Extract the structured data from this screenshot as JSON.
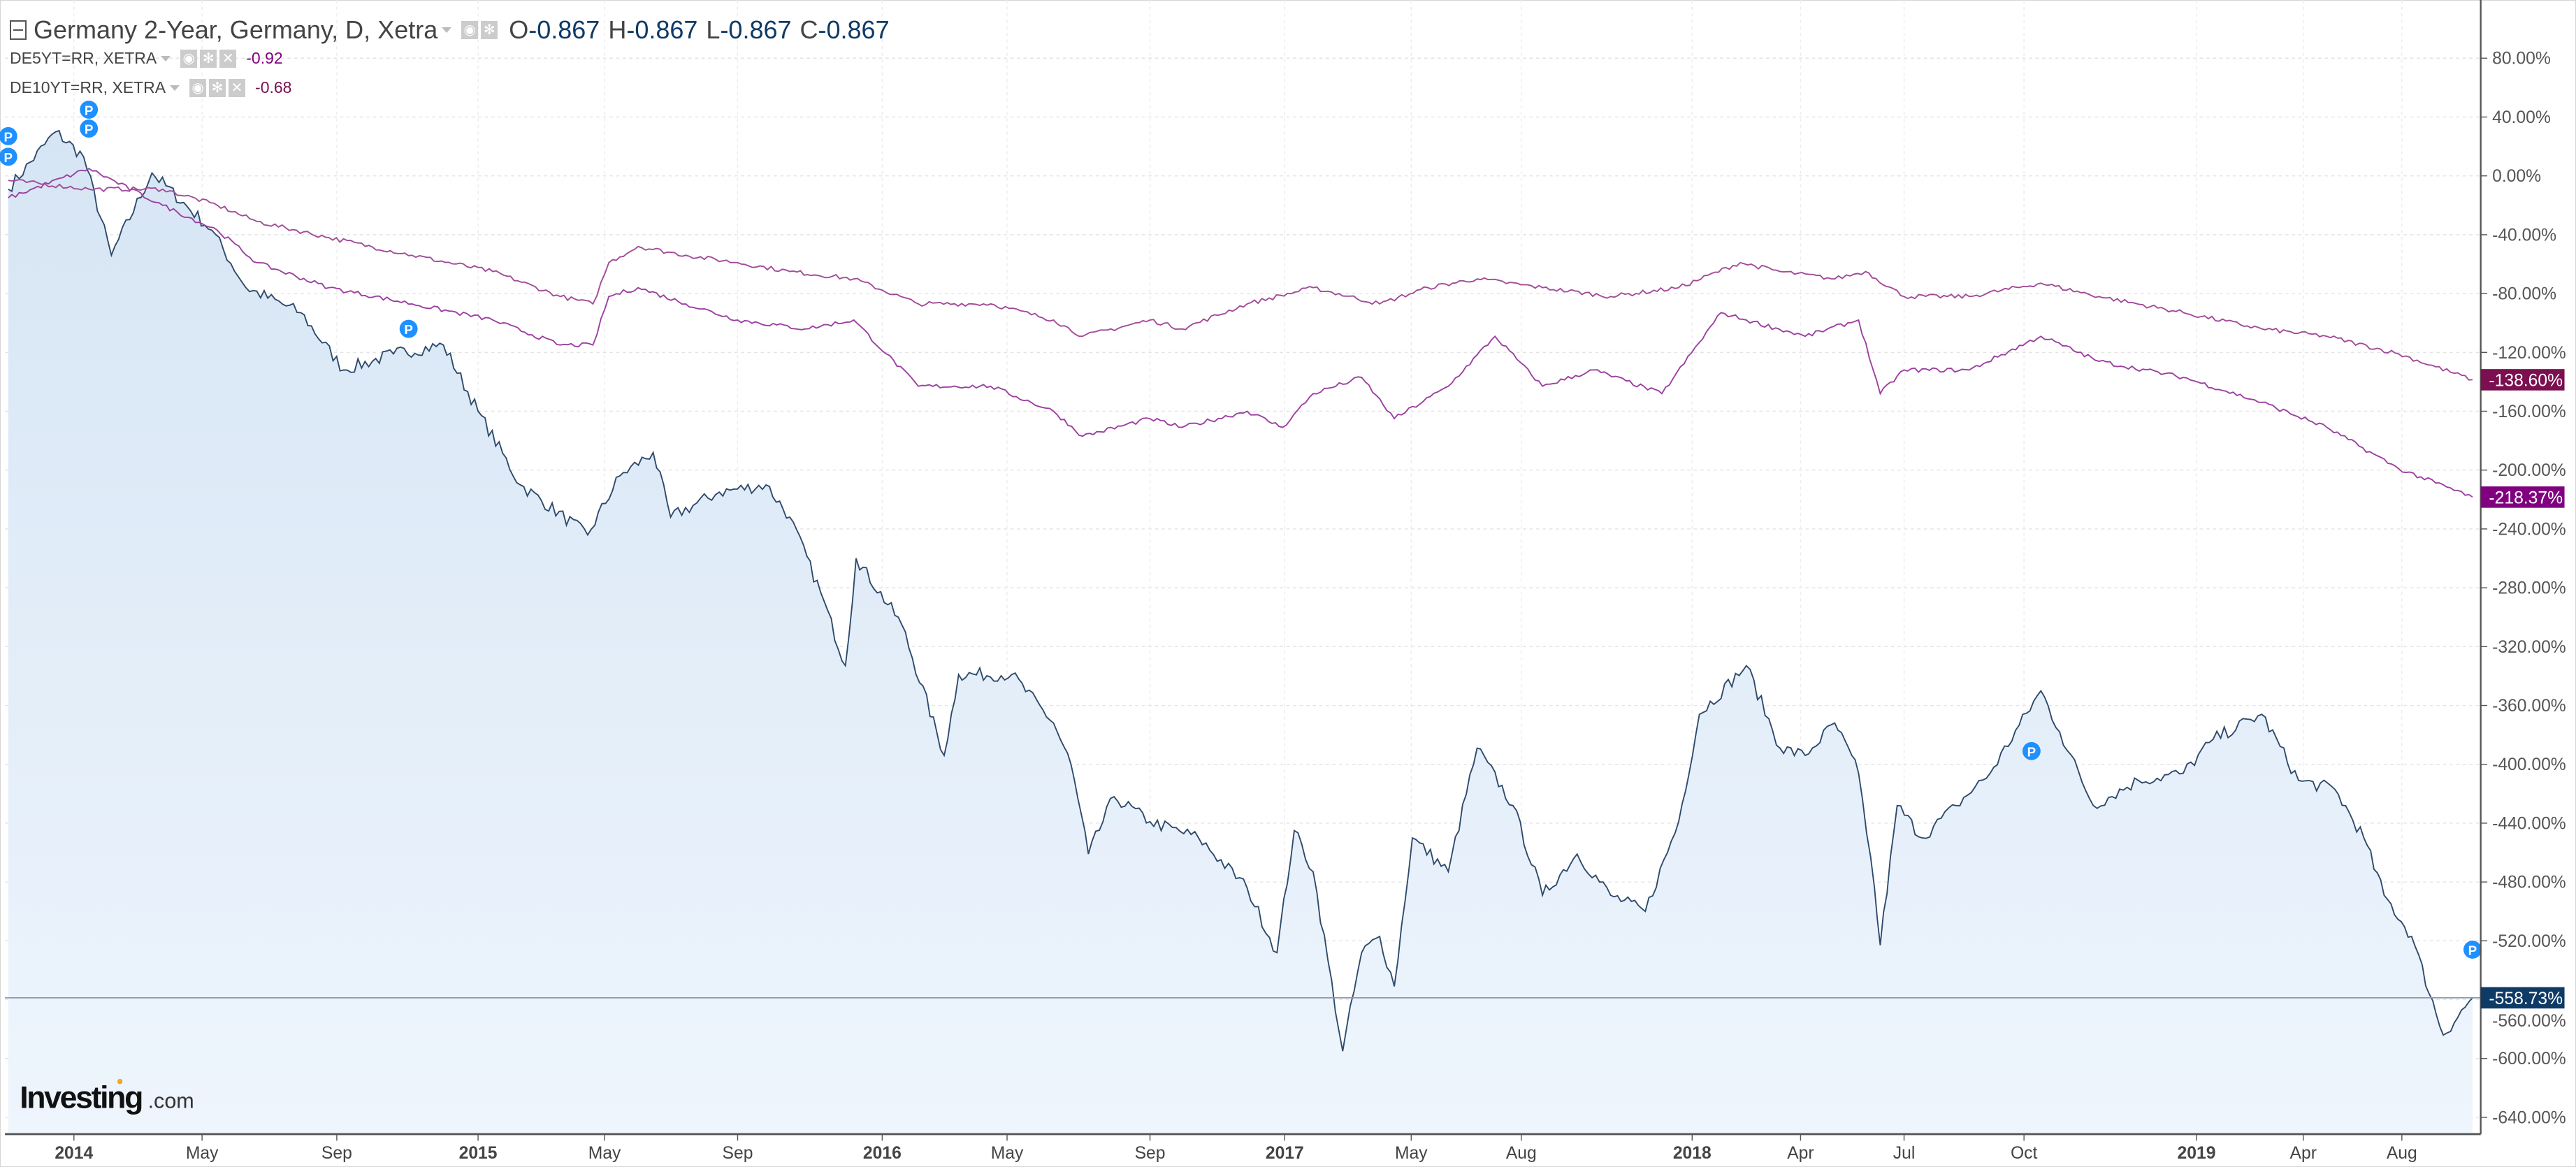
{
  "header": {
    "title": "Germany 2-Year, Germany, D, Xetra",
    "ohlc": [
      {
        "label": "O",
        "value": "-0.867"
      },
      {
        "label": "H",
        "value": "-0.867"
      },
      {
        "label": "L",
        "value": "-0.867"
      },
      {
        "label": "C",
        "value": "-0.867"
      }
    ],
    "overlays": [
      {
        "name": "DE5YT=RR, XETRA",
        "value": "-0.92",
        "color": "#800080"
      },
      {
        "name": "DE10YT=RR, XETRA",
        "value": "-0.68",
        "color": "#7b0f4f"
      }
    ]
  },
  "logo": {
    "brand": "Investing",
    "suffix": ".com"
  },
  "chart_data": {
    "type": "line",
    "y_scale": "percent change",
    "ylim": [
      -650,
      100
    ],
    "y_ticks": [
      "80.00%",
      "40.00%",
      "0.00%",
      "-40.00%",
      "-80.00%",
      "-120.00%",
      "-160.00%",
      "-200.00%",
      "-240.00%",
      "-280.00%",
      "-320.00%",
      "-360.00%",
      "-400.00%",
      "-440.00%",
      "-480.00%",
      "-520.00%",
      "-560.00%",
      "-600.00%",
      "-640.00%"
    ],
    "y_tick_values": [
      80,
      40,
      0,
      -40,
      -80,
      -120,
      -160,
      -200,
      -240,
      -280,
      -320,
      -360,
      -400,
      -440,
      -480,
      -520,
      -560,
      -600,
      -640
    ],
    "x_ticks": [
      {
        "label": "2014",
        "date": "2014-01-01",
        "bold": true
      },
      {
        "label": "May",
        "date": "2014-05-01"
      },
      {
        "label": "Sep",
        "date": "2014-09-01"
      },
      {
        "label": "2015",
        "date": "2015-01-01",
        "bold": true
      },
      {
        "label": "May",
        "date": "2015-05-01"
      },
      {
        "label": "Sep",
        "date": "2015-09-01"
      },
      {
        "label": "2016",
        "date": "2016-01-01",
        "bold": true
      },
      {
        "label": "May",
        "date": "2016-05-01"
      },
      {
        "label": "Sep",
        "date": "2016-09-01"
      },
      {
        "label": "2017",
        "date": "2017-01-01",
        "bold": true
      },
      {
        "label": "May",
        "date": "2017-05-01"
      },
      {
        "label": "Aug",
        "date": "2017-08-01"
      },
      {
        "label": "2018",
        "date": "2018-01-01",
        "bold": true
      },
      {
        "label": "Apr",
        "date": "2018-04-01"
      },
      {
        "label": "Jul",
        "date": "2018-07-01"
      },
      {
        "label": "Oct",
        "date": "2018-10-01"
      },
      {
        "label": "2019",
        "date": "2019-01-01",
        "bold": true
      },
      {
        "label": "Apr",
        "date": "2019-04-01"
      },
      {
        "label": "Aug",
        "date": "2019-08-01"
      }
    ],
    "grid": true,
    "series": [
      {
        "name": "Germany 2-Year",
        "color": "#2e4a6b",
        "fill": true,
        "last_label": "-558.73%",
        "last_value": -558.73,
        "label_bg": "#0e3a66",
        "points": [
          [
            "2013-11-01",
            -9
          ],
          [
            "2013-12-15",
            30
          ],
          [
            "2014-01-10",
            13
          ],
          [
            "2014-02-05",
            -54
          ],
          [
            "2014-03-15",
            2
          ],
          [
            "2014-05-10",
            -37
          ],
          [
            "2014-06-10",
            -76
          ],
          [
            "2014-07-30",
            -93
          ],
          [
            "2014-09-07",
            -132
          ],
          [
            "2014-10-20",
            -121
          ],
          [
            "2014-12-02",
            -115
          ],
          [
            "2015-01-01",
            -160
          ],
          [
            "2015-02-10",
            -210
          ],
          [
            "2015-04-15",
            -244
          ],
          [
            "2015-05-15",
            -204
          ],
          [
            "2015-06-15",
            -188
          ],
          [
            "2015-07-01",
            -232
          ],
          [
            "2015-08-15",
            -215
          ],
          [
            "2015-09-25",
            -210
          ],
          [
            "2015-10-15",
            -232
          ],
          [
            "2015-11-10",
            -283
          ],
          [
            "2015-12-01",
            -333
          ],
          [
            "2015-12-10",
            -260
          ],
          [
            "2016-01-20",
            -305
          ],
          [
            "2016-03-01",
            -394
          ],
          [
            "2016-03-15",
            -339
          ],
          [
            "2016-05-05",
            -339
          ],
          [
            "2016-06-10",
            -372
          ],
          [
            "2016-06-25",
            -400
          ],
          [
            "2016-07-10",
            -461
          ],
          [
            "2016-08-01",
            -422
          ],
          [
            "2016-09-01",
            -439
          ],
          [
            "2016-10-15",
            -450
          ],
          [
            "2016-11-28",
            -484
          ],
          [
            "2016-12-25",
            -528
          ],
          [
            "2017-01-10",
            -445
          ],
          [
            "2017-01-28",
            -473
          ],
          [
            "2017-02-25",
            -595
          ],
          [
            "2017-03-15",
            -528
          ],
          [
            "2017-04-01",
            -517
          ],
          [
            "2017-04-15",
            -551
          ],
          [
            "2017-05-02",
            -450
          ],
          [
            "2017-06-01",
            -473
          ],
          [
            "2017-06-25",
            -389
          ],
          [
            "2017-07-25",
            -428
          ],
          [
            "2017-08-20",
            -489
          ],
          [
            "2017-09-20",
            -461
          ],
          [
            "2017-10-20",
            -489
          ],
          [
            "2017-11-20",
            -500
          ],
          [
            "2017-12-20",
            -439
          ],
          [
            "2018-01-07",
            -366
          ],
          [
            "2018-02-15",
            -333
          ],
          [
            "2018-03-15",
            -389
          ],
          [
            "2018-04-05",
            -394
          ],
          [
            "2018-05-01",
            -372
          ],
          [
            "2018-05-22",
            -406
          ],
          [
            "2018-06-05",
            -484
          ],
          [
            "2018-06-10",
            -523
          ],
          [
            "2018-06-25",
            -428
          ],
          [
            "2018-07-15",
            -450
          ],
          [
            "2018-08-10",
            -428
          ],
          [
            "2018-09-05",
            -406
          ],
          [
            "2018-10-10",
            -350
          ],
          [
            "2018-10-20",
            -378
          ],
          [
            "2018-11-07",
            -428
          ],
          [
            "2018-12-01",
            -411
          ],
          [
            "2018-12-25",
            -406
          ],
          [
            "2019-01-15",
            -383
          ],
          [
            "2019-02-25",
            -366
          ],
          [
            "2019-03-28",
            -411
          ],
          [
            "2019-05-10",
            -417
          ],
          [
            "2019-06-15",
            -450
          ],
          [
            "2019-07-10",
            -489
          ],
          [
            "2019-08-05",
            -517
          ],
          [
            "2019-08-18",
            -584
          ],
          [
            "2019-08-30",
            -558.73
          ]
        ]
      },
      {
        "name": "DE10YT=RR, XETRA",
        "color": "#a24a98",
        "last_label": "-138.60%",
        "last_value": -138.6,
        "label_bg": "#7b0f4f",
        "points": [
          [
            "2013-11-01",
            -3
          ],
          [
            "2014-01-15",
            -9
          ],
          [
            "2014-03-25",
            -9
          ],
          [
            "2014-05-15",
            -20
          ],
          [
            "2014-06-20",
            -31
          ],
          [
            "2014-08-25",
            -42
          ],
          [
            "2014-11-05",
            -54
          ],
          [
            "2015-01-15",
            -65
          ],
          [
            "2015-03-20",
            -82
          ],
          [
            "2015-04-20",
            -87
          ],
          [
            "2015-05-05",
            -59
          ],
          [
            "2015-06-01",
            -48
          ],
          [
            "2015-07-15",
            -54
          ],
          [
            "2015-09-01",
            -59
          ],
          [
            "2015-10-15",
            -65
          ],
          [
            "2015-12-08",
            -70
          ],
          [
            "2016-02-05",
            -87
          ],
          [
            "2016-04-15",
            -87
          ],
          [
            "2016-06-10",
            -98
          ],
          [
            "2016-07-05",
            -109
          ],
          [
            "2016-09-01",
            -98
          ],
          [
            "2016-09-30",
            -104
          ],
          [
            "2016-11-28",
            -87
          ],
          [
            "2017-01-28",
            -76
          ],
          [
            "2017-04-01",
            -87
          ],
          [
            "2017-05-15",
            -76
          ],
          [
            "2017-06-25",
            -70
          ],
          [
            "2017-08-20",
            -76
          ],
          [
            "2017-10-20",
            -82
          ],
          [
            "2017-12-20",
            -76
          ],
          [
            "2018-02-10",
            -59
          ],
          [
            "2018-03-15",
            -65
          ],
          [
            "2018-05-01",
            -70
          ],
          [
            "2018-05-28",
            -65
          ],
          [
            "2018-07-01",
            -82
          ],
          [
            "2018-08-20",
            -82
          ],
          [
            "2018-10-10",
            -73
          ],
          [
            "2018-11-10",
            -82
          ],
          [
            "2018-12-25",
            -93
          ],
          [
            "2019-02-25",
            -104
          ],
          [
            "2019-04-30",
            -109
          ],
          [
            "2019-07-28",
            -121
          ],
          [
            "2019-08-30",
            -138.6
          ]
        ]
      },
      {
        "name": "DE5YT=RR, XETRA",
        "color": "#9b3fa0",
        "last_label": "-218.37%",
        "last_value": -218.37,
        "label_bg": "#800080",
        "points": [
          [
            "2013-11-01",
            -15
          ],
          [
            "2014-01-15",
            5
          ],
          [
            "2014-03-25",
            -20
          ],
          [
            "2014-05-15",
            -37
          ],
          [
            "2014-06-20",
            -59
          ],
          [
            "2014-08-25",
            -76
          ],
          [
            "2014-11-05",
            -87
          ],
          [
            "2015-01-15",
            -98
          ],
          [
            "2015-03-20",
            -115
          ],
          [
            "2015-04-20",
            -115
          ],
          [
            "2015-05-05",
            -82
          ],
          [
            "2015-06-01",
            -76
          ],
          [
            "2015-07-15",
            -87
          ],
          [
            "2015-09-01",
            -98
          ],
          [
            "2015-10-28",
            -104
          ],
          [
            "2015-12-08",
            -98
          ],
          [
            "2016-01-05",
            -121
          ],
          [
            "2016-02-05",
            -143
          ],
          [
            "2016-04-15",
            -143
          ],
          [
            "2016-06-10",
            -160
          ],
          [
            "2016-07-05",
            -177
          ],
          [
            "2016-09-01",
            -165
          ],
          [
            "2016-09-30",
            -171
          ],
          [
            "2016-11-28",
            -160
          ],
          [
            "2016-12-30",
            -171
          ],
          [
            "2017-01-28",
            -148
          ],
          [
            "2017-03-15",
            -137
          ],
          [
            "2017-04-15",
            -165
          ],
          [
            "2017-06-01",
            -143
          ],
          [
            "2017-07-10",
            -109
          ],
          [
            "2017-08-20",
            -143
          ],
          [
            "2017-10-05",
            -132
          ],
          [
            "2017-12-05",
            -148
          ],
          [
            "2018-01-25",
            -93
          ],
          [
            "2018-02-15",
            -98
          ],
          [
            "2018-04-05",
            -109
          ],
          [
            "2018-05-22",
            -98
          ],
          [
            "2018-06-10",
            -148
          ],
          [
            "2018-07-01",
            -132
          ],
          [
            "2018-08-20",
            -132
          ],
          [
            "2018-10-10",
            -109
          ],
          [
            "2018-11-10",
            -126
          ],
          [
            "2018-12-25",
            -137
          ],
          [
            "2019-02-25",
            -154
          ],
          [
            "2019-04-30",
            -171
          ],
          [
            "2019-07-28",
            -199
          ],
          [
            "2019-08-30",
            -218.37
          ]
        ]
      }
    ],
    "markers": [
      {
        "label": "P",
        "date": "2013-11-01",
        "value": 27
      },
      {
        "label": "P",
        "date": "2013-11-01",
        "value": 13
      },
      {
        "label": "P",
        "date": "2014-01-15",
        "value": 45
      },
      {
        "label": "P",
        "date": "2014-01-15",
        "value": 39
      },
      {
        "label": "P",
        "date": "2014-11-02",
        "value": -104
      },
      {
        "label": "P",
        "date": "2018-10-05",
        "value": -391
      },
      {
        "label": "P",
        "date": "2019-08-30",
        "value": -526
      }
    ]
  }
}
